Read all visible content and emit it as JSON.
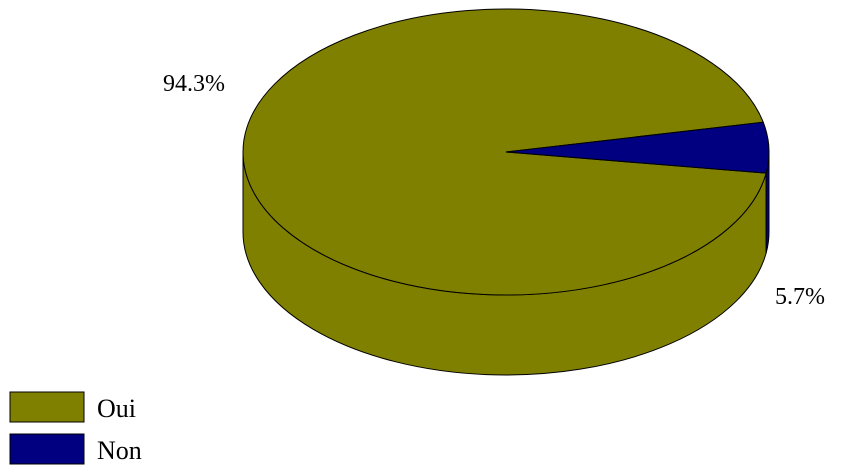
{
  "chart_data": {
    "type": "pie",
    "style": "3d",
    "categories": [
      "Oui",
      "Non"
    ],
    "values": [
      94.3,
      5.7
    ],
    "data_labels": [
      "94.3%",
      "5.7%"
    ],
    "colors": [
      "#808000",
      "#000080"
    ],
    "outline_color": "#000000",
    "legend_position": "bottom-left",
    "legend": [
      {
        "label": "Oui",
        "color": "#808000"
      },
      {
        "label": "Non",
        "color": "#000080"
      }
    ],
    "title": ""
  }
}
